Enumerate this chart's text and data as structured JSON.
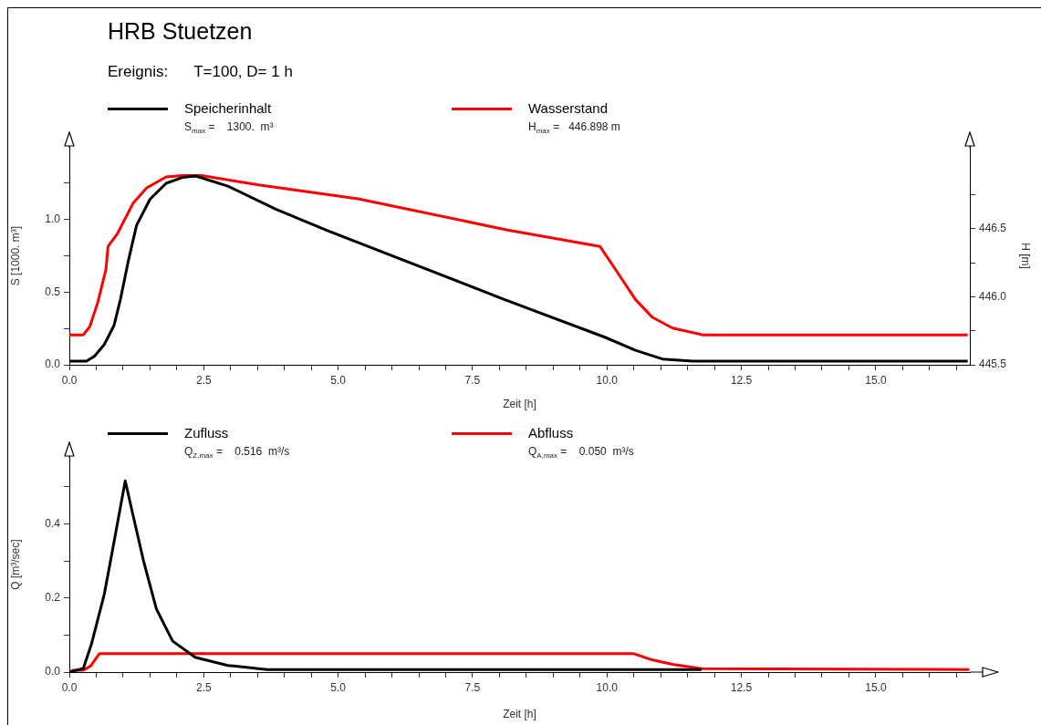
{
  "chart_data": [
    {
      "type": "line",
      "title": "HRB Stuetzen",
      "subtitle": "Ereignis:      T=100, D= 1 h",
      "xlabel": "Zeit [h]",
      "ylabel": "S [1000. m³]",
      "y2label": "H [m]",
      "legend": "top",
      "annotations": [
        "S$_{max}$ =    1300.  m³",
        "H$_{max}$ =   446.898 m"
      ],
      "xlim": [
        0,
        16.75
      ],
      "xticks": [
        {
          "value": 0,
          "label": "0.0"
        },
        {
          "value": 0.5,
          "label": null
        },
        {
          "value": 1,
          "label": null
        },
        {
          "value": 1.5,
          "label": null
        },
        {
          "value": 2,
          "label": null
        },
        2.5,
        {
          "value": 3,
          "label": null
        },
        {
          "value": 3.5,
          "label": null
        },
        {
          "value": 4,
          "label": null
        },
        {
          "value": 4.5,
          "label": null
        },
        {
          "value": 5,
          "label": "5.0"
        },
        {
          "value": 5.5,
          "label": null
        },
        {
          "value": 6,
          "label": null
        },
        {
          "value": 6.5,
          "label": null
        },
        {
          "value": 7,
          "label": null
        },
        7.5,
        {
          "value": 8,
          "label": null
        },
        {
          "value": 8.5,
          "label": null
        },
        {
          "value": 9,
          "label": null
        },
        {
          "value": 9.5,
          "label": null
        },
        {
          "value": 10,
          "label": "10.0"
        },
        {
          "value": 10.5,
          "label": null
        },
        {
          "value": 11,
          "label": null
        },
        {
          "value": 11.5,
          "label": null
        },
        {
          "value": 12,
          "label": null
        },
        12.5,
        {
          "value": 13,
          "label": null
        },
        {
          "value": 13.5,
          "label": null
        },
        {
          "value": 14,
          "label": null
        },
        {
          "value": 14.5,
          "label": null
        },
        {
          "value": 15,
          "label": "15.0"
        },
        {
          "value": 15.5,
          "label": null
        },
        {
          "value": 16,
          "label": null
        },
        {
          "value": 16.5,
          "label": null
        }
      ],
      "ylim": [
        0,
        1.5
      ],
      "yticks": [
        {
          "value": 0,
          "label": "0.0"
        },
        {
          "value": 0.25,
          "label": null
        },
        0.5,
        {
          "value": 0.75,
          "label": null
        },
        {
          "value": 1,
          "label": "1.0"
        },
        {
          "value": 1.25,
          "label": null
        }
      ],
      "y2lim": [
        445.5,
        447.1
      ],
      "y2ticks": [
        445.5,
        {
          "value": 445.75,
          "label": null
        },
        {
          "value": 446,
          "label": "446.0"
        },
        {
          "value": 446.25,
          "label": null
        },
        446.5,
        {
          "value": 446.75,
          "label": null
        }
      ],
      "series": [
        {
          "name": "Speicherinhalt",
          "color": "#000000",
          "x": [
            0,
            0.32,
            0.47,
            0.65,
            0.83,
            0.95,
            1.1,
            1.25,
            1.5,
            1.8,
            2.1,
            2.35,
            2.95,
            3.85,
            4.76,
            8.09,
            9.96,
            10.53,
            11.03,
            11.59,
            16.71
          ],
          "values": [
            0.025,
            0.025,
            0.06,
            0.14,
            0.27,
            0.45,
            0.72,
            0.96,
            1.14,
            1.25,
            1.29,
            1.3,
            1.23,
            1.07,
            0.93,
            0.45,
            0.19,
            0.1,
            0.04,
            0.025,
            0.025
          ]
        },
        {
          "name": "Wasserstand",
          "color": "#ff0000",
          "axis": "y2",
          "x": [
            0,
            0.26,
            0.38,
            0.53,
            0.68,
            0.72,
            0.89,
            1.19,
            1.44,
            1.8,
            2.1,
            2.46,
            3.55,
            5.37,
            8.15,
            9.87,
            10.21,
            10.53,
            10.84,
            11.22,
            11.78,
            16.71
          ],
          "values": [
            445.72,
            445.72,
            445.78,
            445.96,
            446.2,
            446.37,
            446.46,
            446.69,
            446.8,
            446.88,
            446.89,
            446.89,
            446.82,
            446.72,
            446.49,
            446.37,
            446.17,
            445.98,
            445.85,
            445.77,
            445.72,
            445.72
          ]
        }
      ]
    },
    {
      "type": "line",
      "xlabel": "Zeit [h]",
      "ylabel": "Q [m³/sec]",
      "legend": "top",
      "annotations": [
        "Q$_{Z,max}$ =    0.516  m³/s",
        "Q$_{A,max}$ =    0.050  m³/s"
      ],
      "xlim": [
        0,
        16.75
      ],
      "xticks": [
        {
          "value": 0,
          "label": "0.0"
        },
        {
          "value": 0.5,
          "label": null
        },
        {
          "value": 1,
          "label": null
        },
        {
          "value": 1.5,
          "label": null
        },
        {
          "value": 2,
          "label": null
        },
        2.5,
        {
          "value": 3,
          "label": null
        },
        {
          "value": 3.5,
          "label": null
        },
        {
          "value": 4,
          "label": null
        },
        {
          "value": 4.5,
          "label": null
        },
        {
          "value": 5,
          "label": "5.0"
        },
        {
          "value": 5.5,
          "label": null
        },
        {
          "value": 6,
          "label": null
        },
        {
          "value": 6.5,
          "label": null
        },
        {
          "value": 7,
          "label": null
        },
        7.5,
        {
          "value": 8,
          "label": null
        },
        {
          "value": 8.5,
          "label": null
        },
        {
          "value": 9,
          "label": null
        },
        {
          "value": 9.5,
          "label": null
        },
        {
          "value": 10,
          "label": "10.0"
        },
        {
          "value": 10.5,
          "label": null
        },
        {
          "value": 11,
          "label": null
        },
        {
          "value": 11.5,
          "label": null
        },
        {
          "value": 12,
          "label": null
        },
        12.5,
        {
          "value": 13,
          "label": null
        },
        {
          "value": 13.5,
          "label": null
        },
        {
          "value": 14,
          "label": null
        },
        {
          "value": 14.5,
          "label": null
        },
        {
          "value": 15,
          "label": "15.0"
        },
        {
          "value": 15.5,
          "label": null
        },
        {
          "value": 16,
          "label": null
        },
        {
          "value": 16.5,
          "label": null
        }
      ],
      "ylim": [
        0,
        0.58
      ],
      "yticks": [
        {
          "value": 0,
          "label": "0.0"
        },
        {
          "value": 0.1,
          "label": null
        },
        0.2,
        {
          "value": 0.3,
          "label": null
        },
        0.4,
        {
          "value": 0.5,
          "label": null
        }
      ],
      "series": [
        {
          "name": "Zufluss",
          "color": "#000000",
          "x": [
            0,
            0.26,
            0.41,
            0.65,
            0.83,
            1.04,
            1.19,
            1.38,
            1.62,
            1.92,
            2.34,
            2.95,
            3.68,
            11.76
          ],
          "values": [
            0,
            0.01,
            0.075,
            0.21,
            0.35,
            0.516,
            0.42,
            0.3,
            0.17,
            0.084,
            0.04,
            0.018,
            0.007,
            0.007
          ]
        },
        {
          "name": "Abfluss",
          "color": "#ff0000",
          "x": [
            0,
            0.07,
            0.26,
            0.4,
            0.56,
            10.49,
            10.84,
            11.22,
            11.77,
            16.74
          ],
          "values": [
            0,
            0.005,
            0.005,
            0.017,
            0.05,
            0.05,
            0.033,
            0.021,
            0.009,
            0.007
          ]
        }
      ]
    }
  ]
}
